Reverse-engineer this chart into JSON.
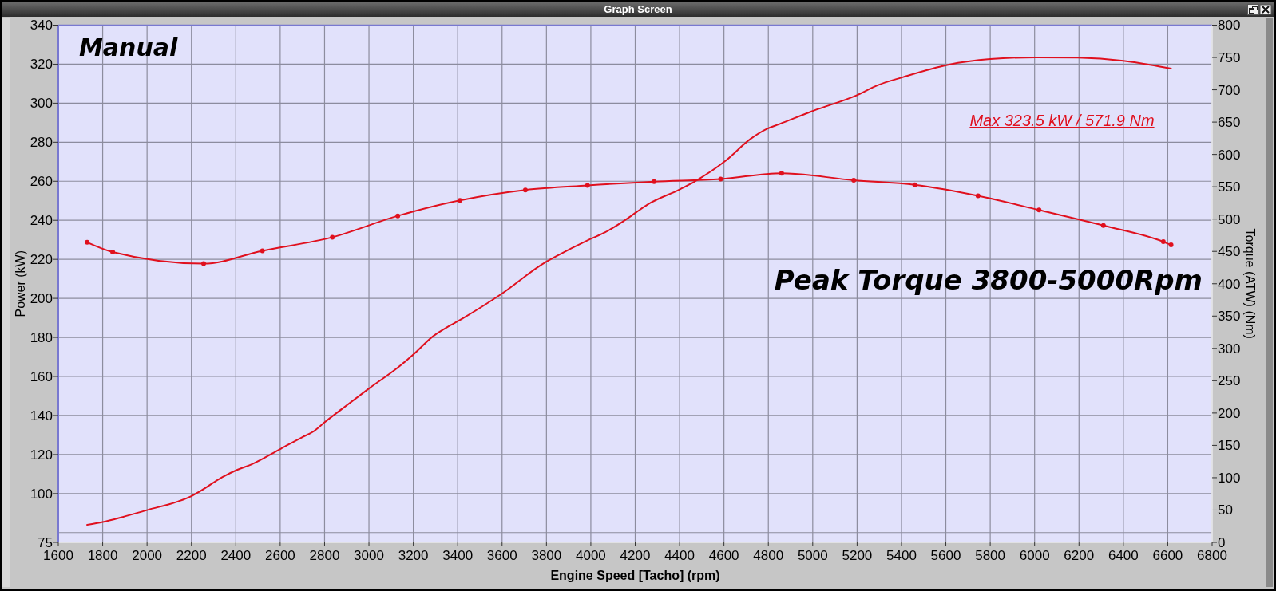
{
  "chart_data": {
    "type": "line",
    "title": "Graph Screen",
    "xlabel": "Engine Speed [Tacho] (rpm)",
    "ylabel": "Power (kW)",
    "y2label": "Torque (ATW) (Nm)",
    "annotations": [
      "Manual",
      "Max 323.5 kW / 571.9 Nm",
      "Peak Torque 3800-5000Rpm"
    ],
    "xlim": [
      1600,
      6800
    ],
    "xticks": [
      1600,
      1800,
      2000,
      2200,
      2400,
      2600,
      2800,
      3000,
      3200,
      3400,
      3600,
      3800,
      4000,
      4200,
      4400,
      4600,
      4800,
      5000,
      5200,
      5400,
      5600,
      5800,
      6000,
      6200,
      6400,
      6600,
      6800
    ],
    "ylim": [
      75,
      340
    ],
    "yticks": [
      75,
      {
        "value": 80,
        "label": null
      },
      100,
      120,
      140,
      160,
      180,
      200,
      220,
      240,
      260,
      280,
      300,
      320,
      340
    ],
    "y2lim": [
      0,
      800
    ],
    "y2ticks": [
      0,
      50,
      100,
      150,
      200,
      250,
      300,
      350,
      400,
      450,
      500,
      550,
      600,
      650,
      700,
      750,
      800
    ],
    "grid": true,
    "series": [
      {
        "color": "#e0101e",
        "x": [
          1730,
          1800,
          1890,
          2005,
          2135,
          2205,
          2235,
          2340,
          2405,
          2470,
          2605,
          2700,
          2750,
          2800,
          2880,
          3000,
          3135,
          3200,
          3290,
          3350,
          3420,
          3600,
          3795,
          3835,
          4000,
          4065,
          4140,
          4205,
          4255,
          4400,
          4465,
          4605,
          4720,
          4795,
          4850,
          5005,
          5195,
          5295,
          5405,
          5610,
          5800,
          6005,
          6195,
          6400,
          6520,
          6615
        ],
        "values": [
          84.0,
          85.4,
          88.0,
          91.7,
          95.8,
          99.0,
          100.9,
          108.5,
          112.1,
          114.9,
          123.1,
          128.9,
          131.8,
          136.5,
          143.5,
          153.8,
          165.0,
          171.2,
          180.7,
          185.1,
          189.6,
          202.5,
          218.5,
          221.0,
          230.5,
          233.9,
          239.0,
          244.1,
          248.0,
          255.8,
          259.7,
          270.3,
          281.7,
          286.9,
          289.3,
          296.2,
          303.9,
          309.3,
          313.3,
          319.7,
          322.6,
          323.5,
          323.3,
          321.7,
          319.7,
          317.7
        ]
      },
      {
        "color": "#e0101e",
        "axis": "y2",
        "marker": "circle",
        "x": [
          1730,
          1845,
          2255,
          2520,
          2835,
          3130,
          3410,
          3705,
          3985,
          4285,
          4585,
          4860,
          5185,
          5460,
          5745,
          6020,
          6310,
          6580,
          6615
        ],
        "values": [
          464,
          449,
          431,
          451,
          472,
          505,
          529,
          545,
          552,
          558,
          562,
          571,
          560,
          553,
          536,
          514,
          490,
          465,
          460
        ]
      }
    ]
  }
}
